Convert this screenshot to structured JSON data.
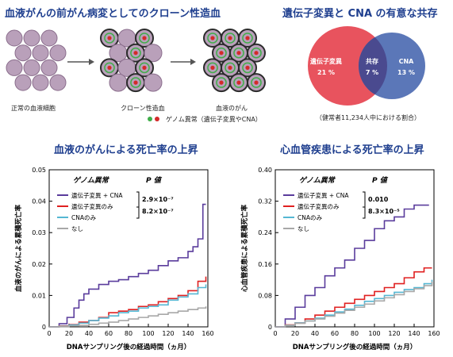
{
  "top_left": {
    "title": "血液がんの前がん病変としてのクローン性造血",
    "label_normal": "正常の血液細胞",
    "label_clonal": "クローン性造血",
    "label_cancer": "血液のがん",
    "legend_text": "ゲノム異常（遺伝子変異やCNA）",
    "colors": {
      "cell": "#b9a0ba",
      "marker_red": "#d42a2a",
      "marker_green": "#3fae49"
    }
  },
  "top_right": {
    "title": "遺伝子変異と CNA の有意な共存",
    "subtitle": "（健常者11,234人中における割合）",
    "venn": [
      {
        "label": "遺伝子変異",
        "pct": "21 %",
        "color": "#e8535e"
      },
      {
        "label": "共存",
        "pct": "7 %",
        "color": "#4a4a8f"
      },
      {
        "label": "CNA",
        "pct": "13 %",
        "color": "#5b77b8"
      }
    ]
  },
  "chart_data": [
    {
      "type": "line",
      "title": "血液のがんによる死亡率の上昇",
      "xlabel": "DNAサンプリング後の経過時間（ヵ月）",
      "ylabel": "血液のがんによる累積死亡率",
      "xlim": [
        0,
        160
      ],
      "ylim": [
        0,
        0.05
      ],
      "xticks": [
        0,
        20,
        40,
        60,
        80,
        100,
        120,
        140,
        160
      ],
      "yticks": [
        0,
        0.01,
        0.02,
        0.03,
        0.04,
        0.05
      ],
      "ytick_labels": [
        "0",
        "0.01",
        "0.02",
        "0.03",
        "0.04",
        "0.05"
      ],
      "legend_header": "ゲノム異常",
      "pvalue_header": "P 値",
      "pvalues": [
        "2.9×10⁻⁷",
        "8.2×10⁻⁷"
      ],
      "series": [
        {
          "name": "遺伝子変異 + CNA",
          "color": "#5a3c9c",
          "x": [
            0,
            10,
            18,
            25,
            30,
            35,
            40,
            50,
            60,
            70,
            80,
            90,
            100,
            110,
            120,
            130,
            140,
            145,
            150,
            155,
            158
          ],
          "y": [
            0,
            0.001,
            0.003,
            0.006,
            0.0085,
            0.0105,
            0.012,
            0.0135,
            0.0145,
            0.015,
            0.016,
            0.017,
            0.018,
            0.0195,
            0.021,
            0.022,
            0.024,
            0.0255,
            0.028,
            0.039,
            0.039
          ]
        },
        {
          "name": "遺伝子変異のみ",
          "color": "#e02020",
          "x": [
            0,
            10,
            20,
            30,
            40,
            50,
            60,
            70,
            80,
            90,
            100,
            110,
            120,
            130,
            140,
            150,
            158
          ],
          "y": [
            0,
            0.0003,
            0.0007,
            0.0015,
            0.002,
            0.003,
            0.0045,
            0.005,
            0.0055,
            0.0065,
            0.007,
            0.008,
            0.009,
            0.01,
            0.0115,
            0.0145,
            0.016
          ]
        },
        {
          "name": "CNAのみ",
          "color": "#55b7d3",
          "x": [
            0,
            10,
            20,
            30,
            40,
            50,
            60,
            70,
            80,
            90,
            100,
            110,
            120,
            130,
            140,
            150,
            158
          ],
          "y": [
            0,
            0.0002,
            0.0006,
            0.0012,
            0.002,
            0.0028,
            0.0035,
            0.0045,
            0.005,
            0.006,
            0.0065,
            0.007,
            0.0085,
            0.0095,
            0.0105,
            0.0125,
            0.0135
          ]
        },
        {
          "name": "なし",
          "color": "#a8a8a8",
          "x": [
            0,
            10,
            20,
            30,
            40,
            50,
            60,
            70,
            80,
            90,
            100,
            110,
            120,
            130,
            140,
            150,
            158
          ],
          "y": [
            0,
            0.0001,
            0.0003,
            0.0005,
            0.0008,
            0.0012,
            0.0015,
            0.002,
            0.0025,
            0.003,
            0.0035,
            0.004,
            0.0045,
            0.005,
            0.0055,
            0.006,
            0.0065
          ]
        }
      ]
    },
    {
      "type": "line",
      "title": "心血管疾患による死亡率の上昇",
      "xlabel": "DNAサンプリング後の経過時間（ヵ月）",
      "ylabel": "心血管疾患による累積死亡率",
      "xlim": [
        0,
        160
      ],
      "ylim": [
        0,
        0.4
      ],
      "xticks": [
        0,
        20,
        40,
        60,
        80,
        100,
        120,
        140,
        160
      ],
      "yticks": [
        0,
        0.08,
        0.16,
        0.24,
        0.32,
        0.4
      ],
      "ytick_labels": [
        "0",
        "0.08",
        "0.16",
        "0.24",
        "0.32",
        "0.40"
      ],
      "legend_header": "ゲノム異常",
      "pvalue_header": "P 値",
      "pvalues": [
        "0.010",
        "8.3×10⁻⁵"
      ],
      "series": [
        {
          "name": "遺伝子変異 + CNA",
          "color": "#5a3c9c",
          "x": [
            0,
            10,
            20,
            30,
            40,
            50,
            60,
            70,
            80,
            90,
            100,
            110,
            120,
            130,
            140,
            150,
            155
          ],
          "y": [
            0,
            0.02,
            0.05,
            0.08,
            0.1,
            0.13,
            0.15,
            0.17,
            0.2,
            0.22,
            0.25,
            0.27,
            0.28,
            0.3,
            0.31,
            0.31,
            0.31
          ]
        },
        {
          "name": "遺伝子変異のみ",
          "color": "#e02020",
          "x": [
            0,
            10,
            20,
            30,
            40,
            50,
            60,
            70,
            80,
            90,
            100,
            110,
            120,
            130,
            140,
            150,
            158
          ],
          "y": [
            0,
            0.005,
            0.01,
            0.02,
            0.03,
            0.04,
            0.05,
            0.06,
            0.07,
            0.08,
            0.09,
            0.1,
            0.11,
            0.125,
            0.14,
            0.15,
            0.15
          ]
        },
        {
          "name": "CNAのみ",
          "color": "#55b7d3",
          "x": [
            0,
            10,
            20,
            30,
            40,
            50,
            60,
            70,
            80,
            90,
            100,
            110,
            120,
            130,
            140,
            150,
            158
          ],
          "y": [
            0,
            0.004,
            0.01,
            0.015,
            0.022,
            0.03,
            0.038,
            0.045,
            0.055,
            0.065,
            0.072,
            0.08,
            0.088,
            0.095,
            0.1,
            0.11,
            0.12
          ]
        },
        {
          "name": "なし",
          "color": "#a8a8a8",
          "x": [
            0,
            10,
            20,
            30,
            40,
            50,
            60,
            70,
            80,
            90,
            100,
            110,
            120,
            130,
            140,
            150,
            158
          ],
          "y": [
            0,
            0.004,
            0.009,
            0.015,
            0.02,
            0.027,
            0.035,
            0.042,
            0.05,
            0.058,
            0.066,
            0.074,
            0.082,
            0.09,
            0.097,
            0.105,
            0.115
          ]
        }
      ]
    }
  ]
}
